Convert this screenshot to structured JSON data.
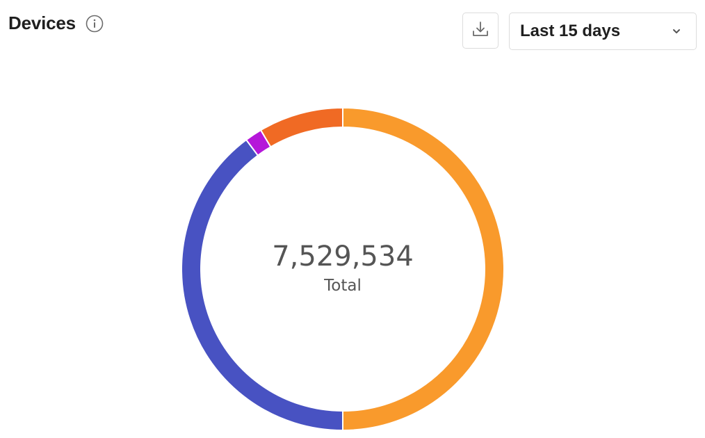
{
  "header": {
    "title": "Devices",
    "info_icon": "info-icon"
  },
  "toolbar": {
    "download_icon": "download-icon",
    "range_select": {
      "selected": "Last 15 days",
      "chevron_icon": "chevron-down-icon"
    }
  },
  "chart_data": {
    "type": "pie",
    "donut": true,
    "title": "Devices",
    "total": 7529534,
    "center": {
      "value": "7,529,534",
      "label": "Total"
    },
    "slices": [
      {
        "value": 3764767,
        "color": "#F99A2C"
      },
      {
        "value": 2996000,
        "color": "#4852C2"
      },
      {
        "value": 130000,
        "color": "#B517D9"
      },
      {
        "value": 638767,
        "color": "#F06A24"
      }
    ]
  },
  "colors": {
    "border": "#dcdcdc",
    "text": "#1f1f1f",
    "center_text": "#555555",
    "icon": "#6b6b6b"
  }
}
